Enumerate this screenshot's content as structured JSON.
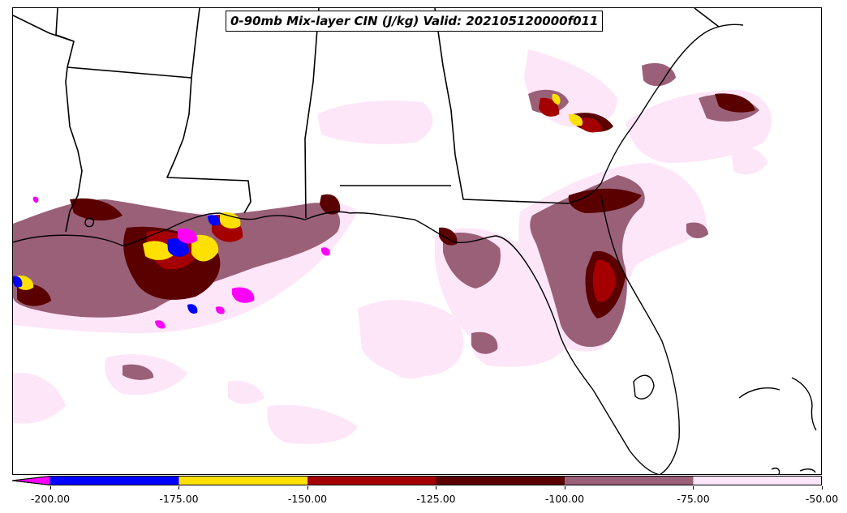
{
  "title": "0-90mb Mix-layer CIN (J/kg) Valid: 202105120000f011",
  "colorbar": {
    "underflow_color": "#ff00ff",
    "bins": [
      {
        "from": -200,
        "to": -175,
        "color": "#0000ff"
      },
      {
        "from": -175,
        "to": -150,
        "color": "#ffe000"
      },
      {
        "from": -150,
        "to": -125,
        "color": "#a50000"
      },
      {
        "from": -125,
        "to": -100,
        "color": "#5a0000"
      },
      {
        "from": -100,
        "to": -75,
        "color": "#9a6078"
      },
      {
        "from": -75,
        "to": -50,
        "color": "#fde6f8"
      }
    ],
    "tick_labels": [
      "-200.00",
      "-175.00",
      "-150.00",
      "-125.00",
      "-100.00",
      "-75.00",
      "-50.00"
    ]
  },
  "map": {
    "region": "Gulf of Mexico / Southeastern US",
    "boundaries": "state and coastline outlines"
  }
}
